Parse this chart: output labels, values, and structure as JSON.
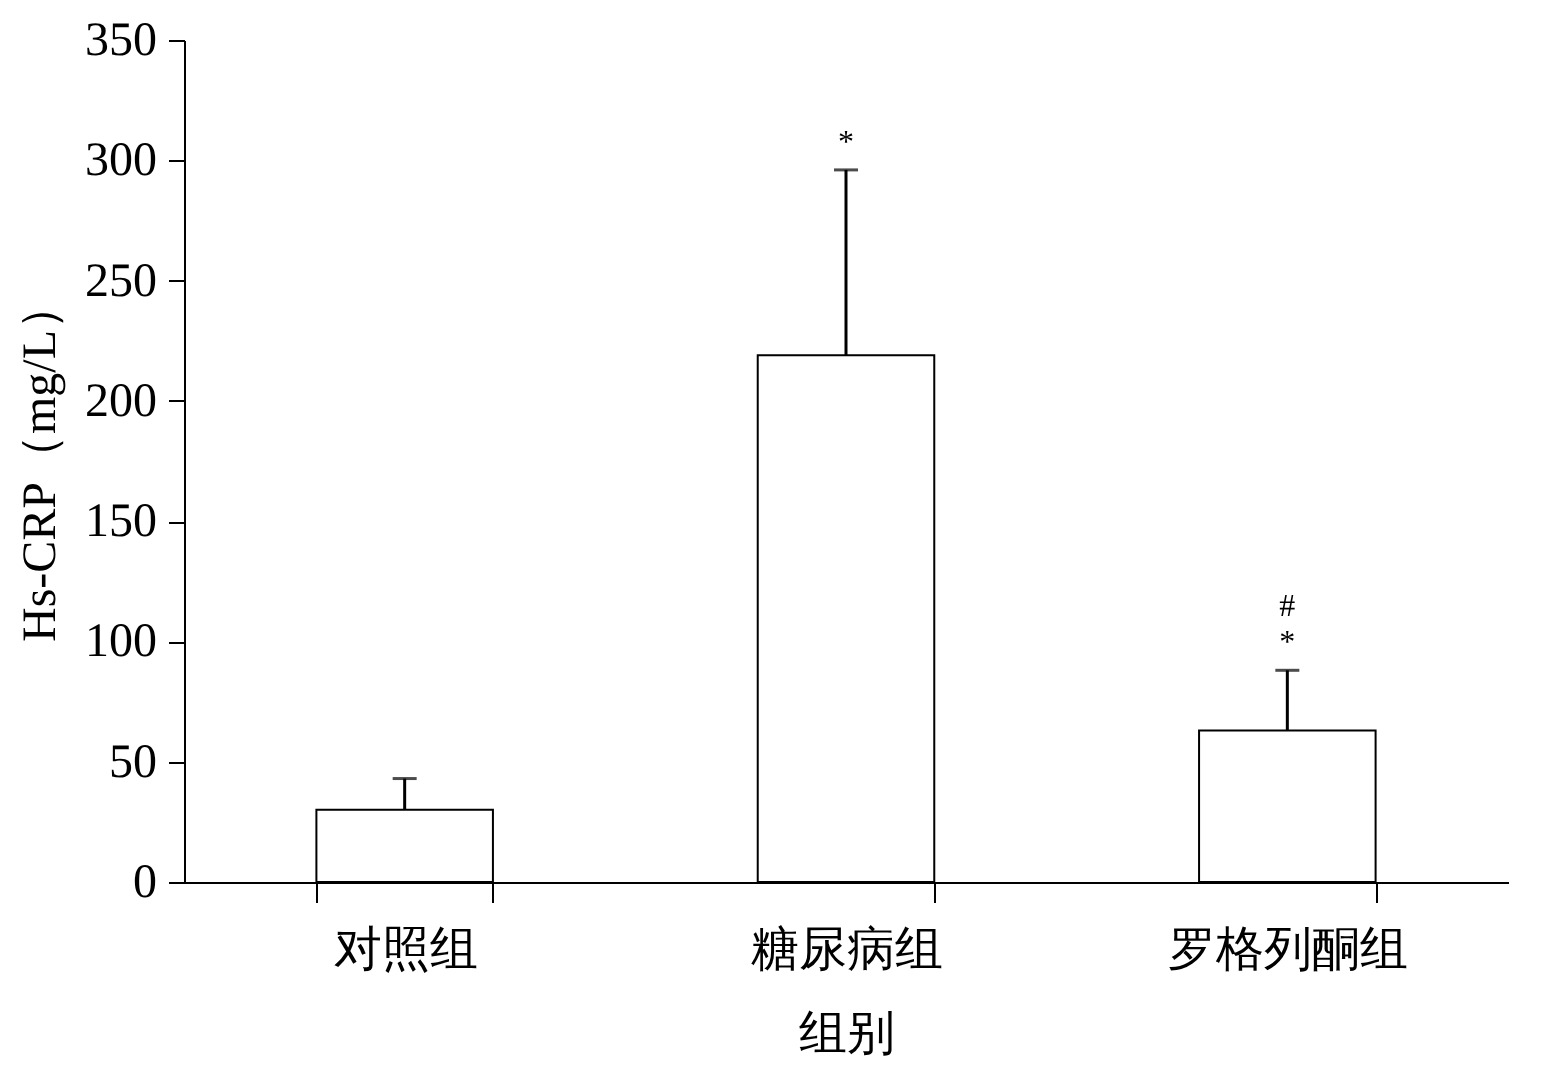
{
  "chart_data": {
    "type": "bar",
    "xlabel": "组别",
    "ylabel": "Hs-CRP（mg/L）",
    "categories": [
      "对照组",
      "糖尿病组",
      "罗格列酮组"
    ],
    "values": [
      30,
      219,
      63
    ],
    "errors": [
      13,
      77,
      25
    ],
    "color": "#ffffff",
    "ylim": [
      0,
      350
    ],
    "yticks": [
      0,
      50,
      100,
      150,
      200,
      250,
      300,
      350
    ],
    "grid": false,
    "annotations": [
      {
        "text": "*",
        "x": "糖尿病组",
        "y": 296
      },
      {
        "text": "*",
        "x": "罗格列酮组",
        "y": 88
      },
      {
        "text": "#",
        "x": "罗格列酮组",
        "y": 88
      }
    ]
  }
}
